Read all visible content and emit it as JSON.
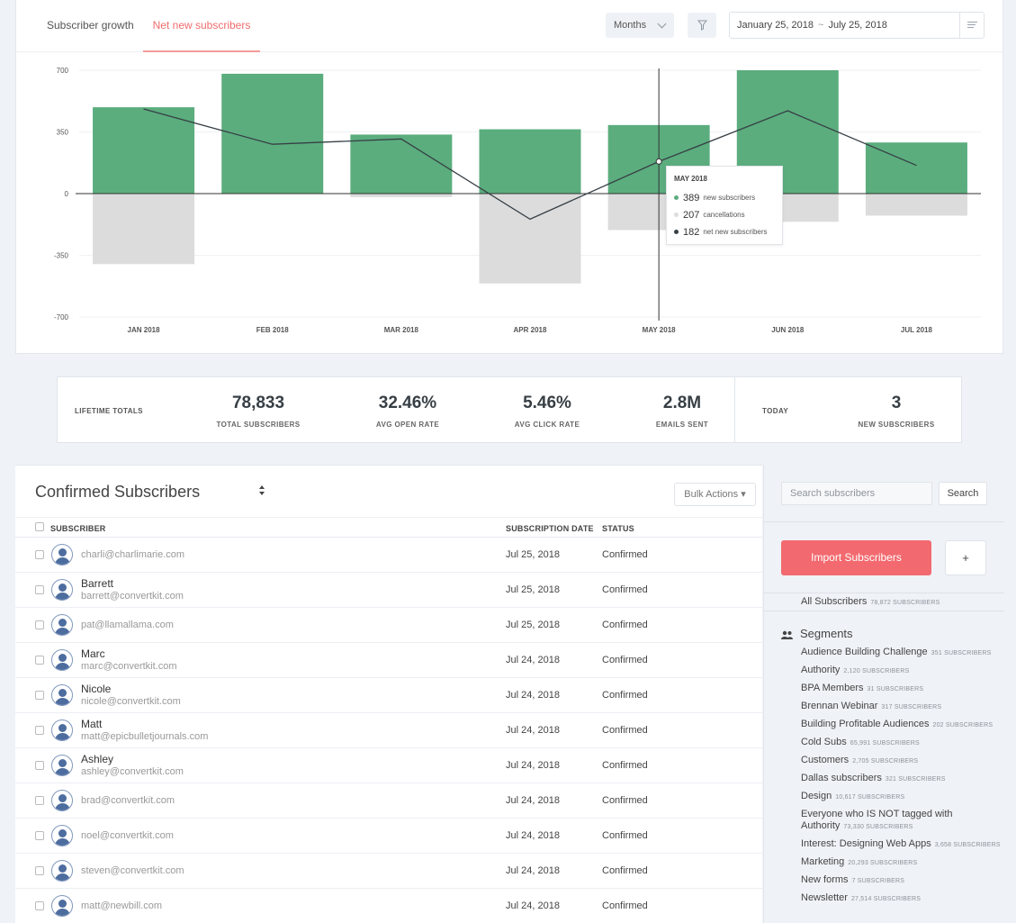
{
  "header": {
    "tabs": [
      "Subscriber growth",
      "Net new subscribers"
    ],
    "period_label": "Months",
    "date_start": "January 25, 2018",
    "date_sep": "~",
    "date_end": "July 25, 2018"
  },
  "chart_data": {
    "type": "bar",
    "categories": [
      "JAN 2018",
      "FEB 2018",
      "MAR 2018",
      "APR 2018",
      "MAY 2018",
      "JUN 2018",
      "JUL 2018"
    ],
    "series": [
      {
        "name": "new subscribers",
        "kind": "bar",
        "values": [
          490,
          680,
          335,
          365,
          389,
          700,
          290
        ],
        "color": "#5bad7e"
      },
      {
        "name": "cancellations",
        "kind": "bar",
        "values": [
          -400,
          0,
          -20,
          -510,
          -207,
          -160,
          -125
        ],
        "color": "#dcdcdc"
      },
      {
        "name": "net new subscribers",
        "kind": "line",
        "values": [
          480,
          280,
          310,
          -145,
          182,
          470,
          160
        ],
        "color": "#373f45"
      }
    ],
    "yticks": [
      700,
      350,
      0,
      -350,
      -700
    ],
    "ylim": [
      -700,
      700
    ],
    "highlight_index": 4,
    "tooltip": {
      "title": "MAY 2018",
      "rows": [
        {
          "value": "389",
          "label": "new subscribers",
          "color": "#5bad7e"
        },
        {
          "value": "207",
          "label": "cancellations",
          "color": "#dcdcdc"
        },
        {
          "value": "182",
          "label": "net new subscribers",
          "color": "#373f45"
        }
      ]
    }
  },
  "totals": {
    "lifetime_label": "LIFETIME TOTALS",
    "stats": [
      {
        "value": "78,833",
        "label": "TOTAL SUBSCRIBERS"
      },
      {
        "value": "32.46%",
        "label": "AVG OPEN RATE"
      },
      {
        "value": "5.46%",
        "label": "AVG CLICK RATE"
      },
      {
        "value": "2.8M",
        "label": "EMAILS SENT"
      }
    ],
    "today_label": "TODAY",
    "today_value": "3",
    "today_sub": "NEW SUBSCRIBERS"
  },
  "subscribers": {
    "title": "Confirmed Subscribers",
    "bulk_label": "Bulk Actions ▾",
    "columns": [
      "SUBSCRIBER",
      "SUBSCRIPTION DATE",
      "STATUS"
    ],
    "rows": [
      {
        "name": "",
        "email": "charli@charlimarie.com",
        "date": "Jul 25, 2018",
        "status": "Confirmed"
      },
      {
        "name": "Barrett",
        "email": "barrett@convertkit.com",
        "date": "Jul 25, 2018",
        "status": "Confirmed"
      },
      {
        "name": "",
        "email": "pat@llamallama.com",
        "date": "Jul 25, 2018",
        "status": "Confirmed"
      },
      {
        "name": "Marc",
        "email": "marc@convertkit.com",
        "date": "Jul 24, 2018",
        "status": "Confirmed"
      },
      {
        "name": "Nicole",
        "email": "nicole@convertkit.com",
        "date": "Jul 24, 2018",
        "status": "Confirmed"
      },
      {
        "name": "Matt",
        "email": "matt@epicbulletjournals.com",
        "date": "Jul 24, 2018",
        "status": "Confirmed"
      },
      {
        "name": "Ashley",
        "email": "ashley@convertkit.com",
        "date": "Jul 24, 2018",
        "status": "Confirmed"
      },
      {
        "name": "",
        "email": "brad@convertkit.com",
        "date": "Jul 24, 2018",
        "status": "Confirmed"
      },
      {
        "name": "",
        "email": "noel@convertkit.com",
        "date": "Jul 24, 2018",
        "status": "Confirmed"
      },
      {
        "name": "",
        "email": "steven@convertkit.com",
        "date": "Jul 24, 2018",
        "status": "Confirmed"
      },
      {
        "name": "",
        "email": "matt@newbill.com",
        "date": "Jul 24, 2018",
        "status": "Confirmed"
      }
    ]
  },
  "sidebar": {
    "search_placeholder": "Search subscribers",
    "search_label": "Search",
    "import_label": "Import Subscribers",
    "plus_label": "+",
    "all_label": "All Subscribers",
    "all_count": "78,872 SUBSCRIBERS",
    "segments_label": "Segments",
    "segments": [
      {
        "name": "Audience Building Challenge",
        "count": "351 SUBSCRIBERS"
      },
      {
        "name": "Authority",
        "count": "2,120 SUBSCRIBERS"
      },
      {
        "name": "BPA Members",
        "count": "31 SUBSCRIBERS"
      },
      {
        "name": "Brennan Webinar",
        "count": "317 SUBSCRIBERS"
      },
      {
        "name": "Building Profitable Audiences",
        "count": "202 SUBSCRIBERS"
      },
      {
        "name": "Cold Subs",
        "count": "65,991 SUBSCRIBERS"
      },
      {
        "name": "Customers",
        "count": "2,705 SUBSCRIBERS"
      },
      {
        "name": "Dallas subscribers",
        "count": "321 SUBSCRIBERS"
      },
      {
        "name": "Design",
        "count": "10,617 SUBSCRIBERS"
      },
      {
        "name": "Everyone who IS NOT tagged with Authority",
        "count": "73,330 SUBSCRIBERS"
      },
      {
        "name": "Interest: Designing Web Apps",
        "count": "3,658 SUBSCRIBERS"
      },
      {
        "name": "Marketing",
        "count": "20,293 SUBSCRIBERS"
      },
      {
        "name": "New forms",
        "count": "7 SUBSCRIBERS"
      },
      {
        "name": "Newsletter",
        "count": "27,514 SUBSCRIBERS"
      }
    ]
  }
}
